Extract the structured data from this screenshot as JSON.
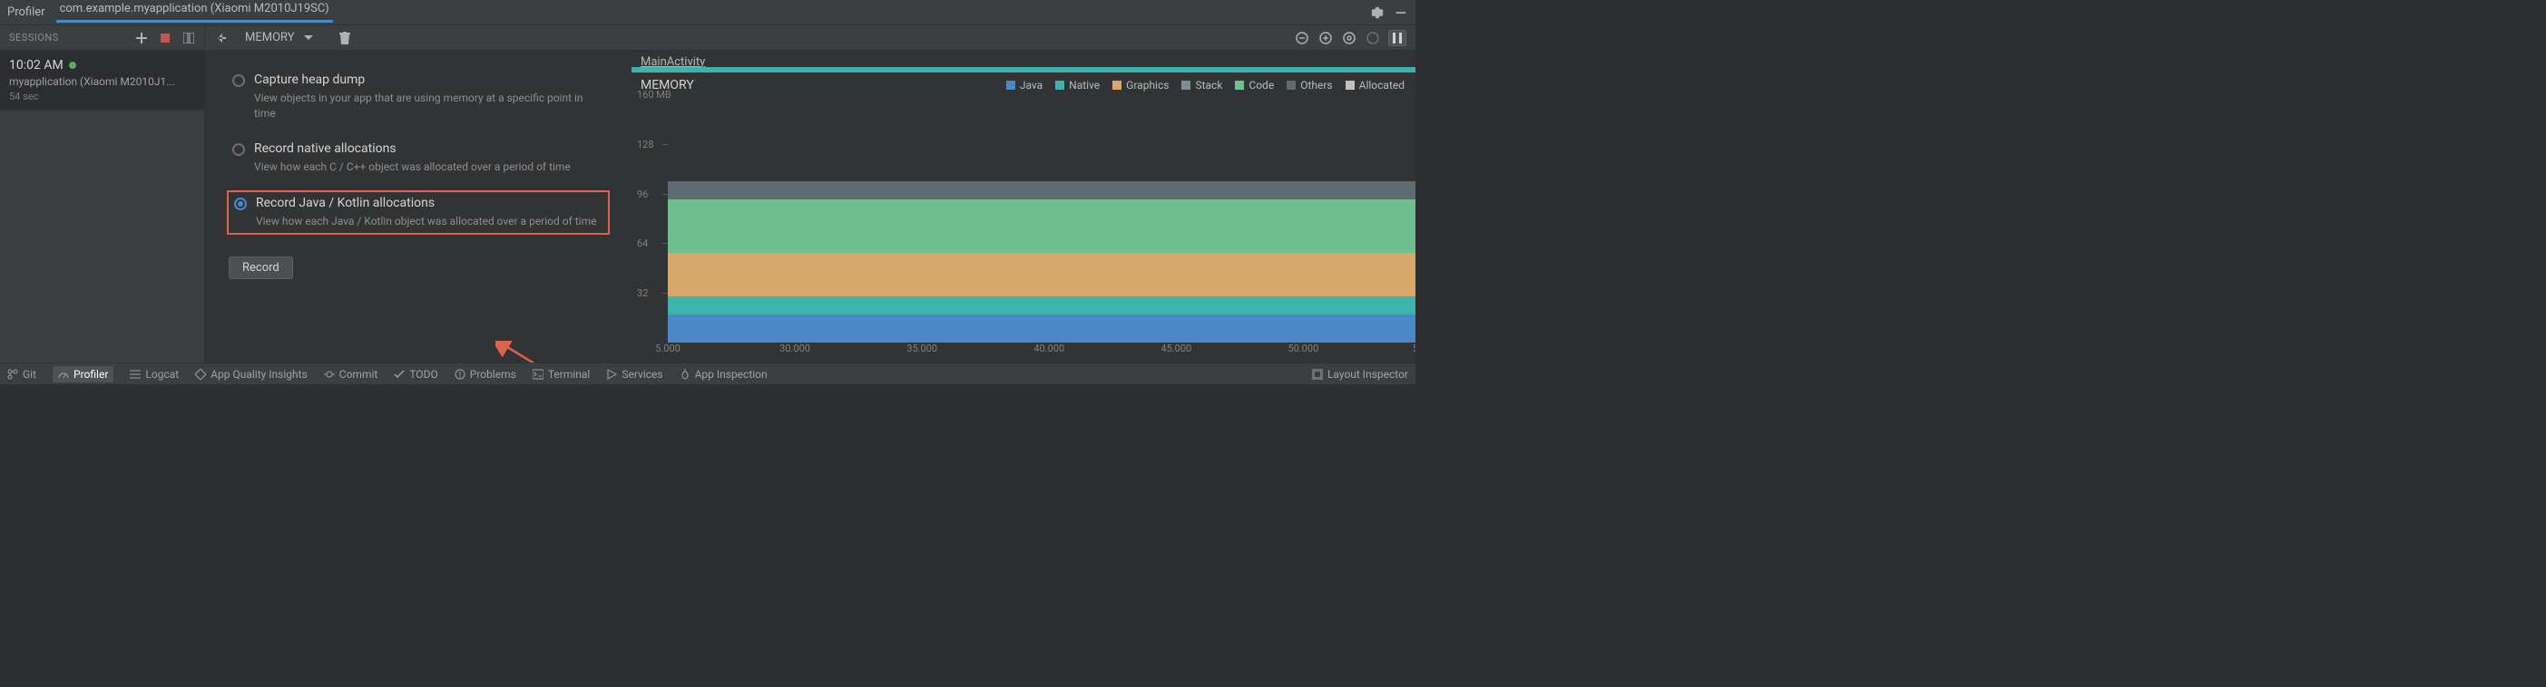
{
  "titlebar": {
    "title": "Profiler",
    "app": "com.example.myapplication (Xiaomi M2010J19SC)"
  },
  "subbar": {
    "sessions_label": "SESSIONS",
    "memory_label": "MEMORY"
  },
  "session": {
    "time": "10:02 AM",
    "app": "myapplication (Xiaomi M2010J1...",
    "duration": "54 sec"
  },
  "options": {
    "heap": {
      "title": "Capture heap dump",
      "desc": "View objects in your app that are using memory at a specific point in time"
    },
    "native": {
      "title": "Record native allocations",
      "desc": "View how each C / C++ object was allocated over a period of time"
    },
    "java": {
      "title": "Record Java / Kotlin allocations",
      "desc": "View how each Java / Kotlin object was allocated over a period of time"
    },
    "record_btn": "Record"
  },
  "chart": {
    "activity": "MainActivity",
    "memory_title": "MEMORY",
    "legend": [
      {
        "label": "Java",
        "color": "#4a88c7"
      },
      {
        "label": "Native",
        "color": "#3cb4ac"
      },
      {
        "label": "Graphics",
        "color": "#d6a96a"
      },
      {
        "label": "Stack",
        "color": "#7f8e96"
      },
      {
        "label": "Code",
        "color": "#6fbf8f"
      },
      {
        "label": "Others",
        "color": "#5e6b73"
      },
      {
        "label": "Allocated",
        "color": "#c0c0c0"
      }
    ],
    "yticks": [
      {
        "label": "160 MB",
        "value": 160
      },
      {
        "label": "128",
        "value": 128
      },
      {
        "label": "96",
        "value": 96
      },
      {
        "label": "64",
        "value": 64
      },
      {
        "label": "32",
        "value": 32
      }
    ],
    "ymax": 160,
    "stacks": [
      {
        "color": "#5e6b73",
        "from": 92,
        "to": 104
      },
      {
        "color": "#6fbf8f",
        "from": 58,
        "to": 92
      },
      {
        "color": "#d6a96a",
        "from": 30,
        "to": 58
      },
      {
        "color": "#3cb4ac",
        "from": 18,
        "to": 30
      },
      {
        "color": "#4a88c7",
        "from": 0,
        "to": 18
      }
    ],
    "xticks": [
      {
        "label": "5.000",
        "pos": 0
      },
      {
        "label": "30.000",
        "pos": 17
      },
      {
        "label": "35.000",
        "pos": 34
      },
      {
        "label": "40.000",
        "pos": 51
      },
      {
        "label": "45.000",
        "pos": 68
      },
      {
        "label": "50.000",
        "pos": 85
      },
      {
        "label": "5",
        "pos": 100
      }
    ]
  },
  "bottombar": {
    "items": [
      {
        "label": "Git",
        "icon": "branch"
      },
      {
        "label": "Profiler",
        "icon": "gauge",
        "active": true
      },
      {
        "label": "Logcat",
        "icon": "list"
      },
      {
        "label": "App Quality Insights",
        "icon": "diamond"
      },
      {
        "label": "Commit",
        "icon": "commit"
      },
      {
        "label": "TODO",
        "icon": "todo"
      },
      {
        "label": "Problems",
        "icon": "warning"
      },
      {
        "label": "Terminal",
        "icon": "terminal"
      },
      {
        "label": "Services",
        "icon": "play"
      },
      {
        "label": "App Inspection",
        "icon": "bug"
      }
    ],
    "right": "Layout Inspector"
  },
  "colors": {
    "highlight_border": "#d9634d",
    "arrow": "#d9634d"
  }
}
